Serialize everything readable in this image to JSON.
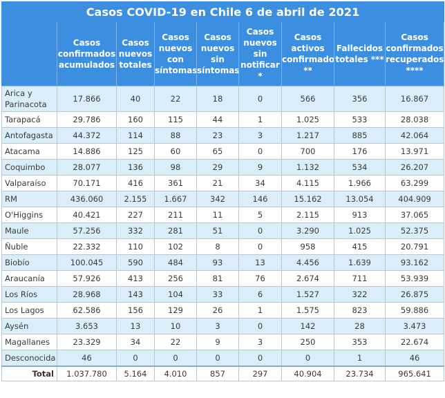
{
  "title": "Casos COVID-19 en Chile 6 de abril de 2021",
  "headers": [
    "",
    "Casos confirmados acumulados",
    "Casos nuevos totales",
    "Casos nuevos con síntomas",
    "Casos nuevos sin síntomas",
    "Casos nuevos sin notificar *",
    "Casos activos confirmados **",
    "Fallecidos totales ***",
    "Casos confirmados recuperados ****"
  ],
  "rows": [
    [
      "Arica y Parinacota",
      "17.866",
      "40",
      "22",
      "18",
      "0",
      "566",
      "356",
      "16.867"
    ],
    [
      "Tarapacá",
      "29.786",
      "160",
      "115",
      "44",
      "1",
      "1.025",
      "533",
      "28.038"
    ],
    [
      "Antofagasta",
      "44.372",
      "114",
      "88",
      "23",
      "3",
      "1.217",
      "885",
      "42.064"
    ],
    [
      "Atacama",
      "14.886",
      "125",
      "60",
      "65",
      "0",
      "700",
      "176",
      "13.971"
    ],
    [
      "Coquimbo",
      "28.077",
      "136",
      "98",
      "29",
      "9",
      "1.132",
      "534",
      "26.207"
    ],
    [
      "Valparaíso",
      "70.171",
      "416",
      "361",
      "21",
      "34",
      "4.115",
      "1.966",
      "63.299"
    ],
    [
      "RM",
      "436.060",
      "2.155",
      "1.667",
      "342",
      "146",
      "15.162",
      "13.054",
      "404.909"
    ],
    [
      "O'Higgins",
      "40.421",
      "227",
      "211",
      "11",
      "5",
      "2.115",
      "913",
      "37.065"
    ],
    [
      "Maule",
      "57.256",
      "332",
      "281",
      "51",
      "0",
      "3.290",
      "1.025",
      "52.375"
    ],
    [
      "Ñuble",
      "22.332",
      "110",
      "102",
      "8",
      "0",
      "958",
      "415",
      "20.791"
    ],
    [
      "Biobío",
      "100.045",
      "590",
      "484",
      "93",
      "13",
      "4.456",
      "1.639",
      "93.162"
    ],
    [
      "Araucanía",
      "57.926",
      "413",
      "256",
      "81",
      "76",
      "2.674",
      "711",
      "53.939"
    ],
    [
      "Los Ríos",
      "28.968",
      "143",
      "104",
      "33",
      "6",
      "1.527",
      "322",
      "26.875"
    ],
    [
      "Los Lagos",
      "62.586",
      "156",
      "129",
      "26",
      "1",
      "1.575",
      "823",
      "59.886"
    ],
    [
      "Aysén",
      "3.653",
      "13",
      "10",
      "3",
      "0",
      "142",
      "28",
      "3.473"
    ],
    [
      "Magallanes",
      "23.329",
      "34",
      "22",
      "9",
      "3",
      "250",
      "353",
      "22.674"
    ],
    [
      "Desconocida",
      "46",
      "0",
      "0",
      "0",
      "0",
      "0",
      "1",
      "46"
    ]
  ],
  "total": [
    "Total",
    "1.037.780",
    "5.164",
    "4.010",
    "857",
    "297",
    "40.904",
    "23.734",
    "965.641"
  ],
  "colors": {
    "header": "#3c8fe0",
    "alt_row": "#daeefa",
    "border": "#b9c6d2"
  }
}
